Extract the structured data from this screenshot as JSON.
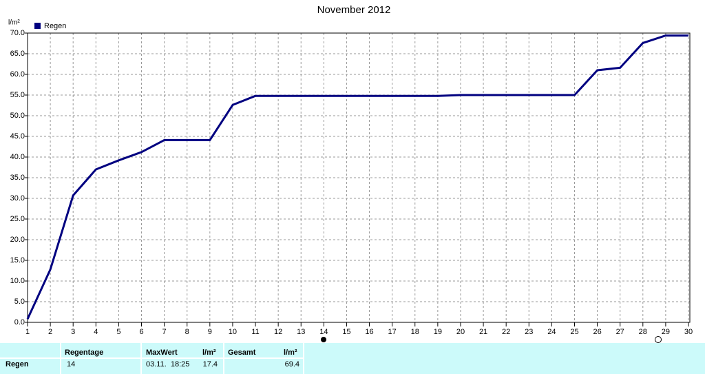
{
  "chart_data": {
    "type": "line",
    "title": "November 2012",
    "y_label": "l/m²",
    "x": [
      1,
      2,
      3,
      4,
      5,
      6,
      7,
      8,
      9,
      10,
      11,
      12,
      13,
      14,
      15,
      16,
      17,
      18,
      19,
      20,
      21,
      22,
      23,
      24,
      25,
      26,
      27,
      28,
      29,
      30
    ],
    "series": [
      {
        "name": "Regen",
        "color": "#000080",
        "values": [
          0.8,
          12.8,
          30.7,
          37.0,
          39.2,
          41.2,
          44.1,
          44.1,
          44.1,
          52.6,
          54.8,
          54.8,
          54.8,
          54.8,
          54.8,
          54.8,
          54.8,
          54.8,
          54.8,
          55.0,
          55.0,
          55.0,
          55.0,
          55.0,
          55.0,
          61.0,
          61.6,
          67.6,
          69.4,
          69.4
        ]
      }
    ],
    "xlim": [
      1,
      30
    ],
    "xticks": [
      1,
      2,
      3,
      4,
      5,
      6,
      7,
      8,
      9,
      10,
      11,
      12,
      13,
      14,
      15,
      16,
      17,
      18,
      19,
      20,
      21,
      22,
      23,
      24,
      25,
      26,
      27,
      28,
      29,
      30
    ],
    "ylim": [
      0,
      70
    ],
    "yticks": [
      {
        "value": 0,
        "label": "0.0"
      },
      {
        "value": 5,
        "label": "5.0"
      },
      {
        "value": 10,
        "label": "10.0"
      },
      {
        "value": 15,
        "label": "15.0"
      },
      {
        "value": 20,
        "label": "20.0"
      },
      {
        "value": 25,
        "label": "25.0"
      },
      {
        "value": 30,
        "label": "30.0"
      },
      {
        "value": 35,
        "label": "35.0"
      },
      {
        "value": 40,
        "label": "40.0"
      },
      {
        "value": 45,
        "label": "45.0"
      },
      {
        "value": 50,
        "label": "50.0"
      },
      {
        "value": 55,
        "label": "55.0"
      },
      {
        "value": 60,
        "label": "60.0"
      },
      {
        "value": 65,
        "label": "65.0"
      },
      {
        "value": 70,
        "label": "70.0"
      }
    ],
    "grid": true,
    "legend": "top-left"
  },
  "table": {
    "columns": [
      "Regentage",
      "MaxWert",
      "l/m²",
      "Gesamt",
      "l/m²"
    ],
    "row": {
      "label": "Regen",
      "regentage": "14",
      "maxwert_time": "03.11.  18:25",
      "maxwert": "17.4",
      "gesamt": "69.4"
    }
  }
}
